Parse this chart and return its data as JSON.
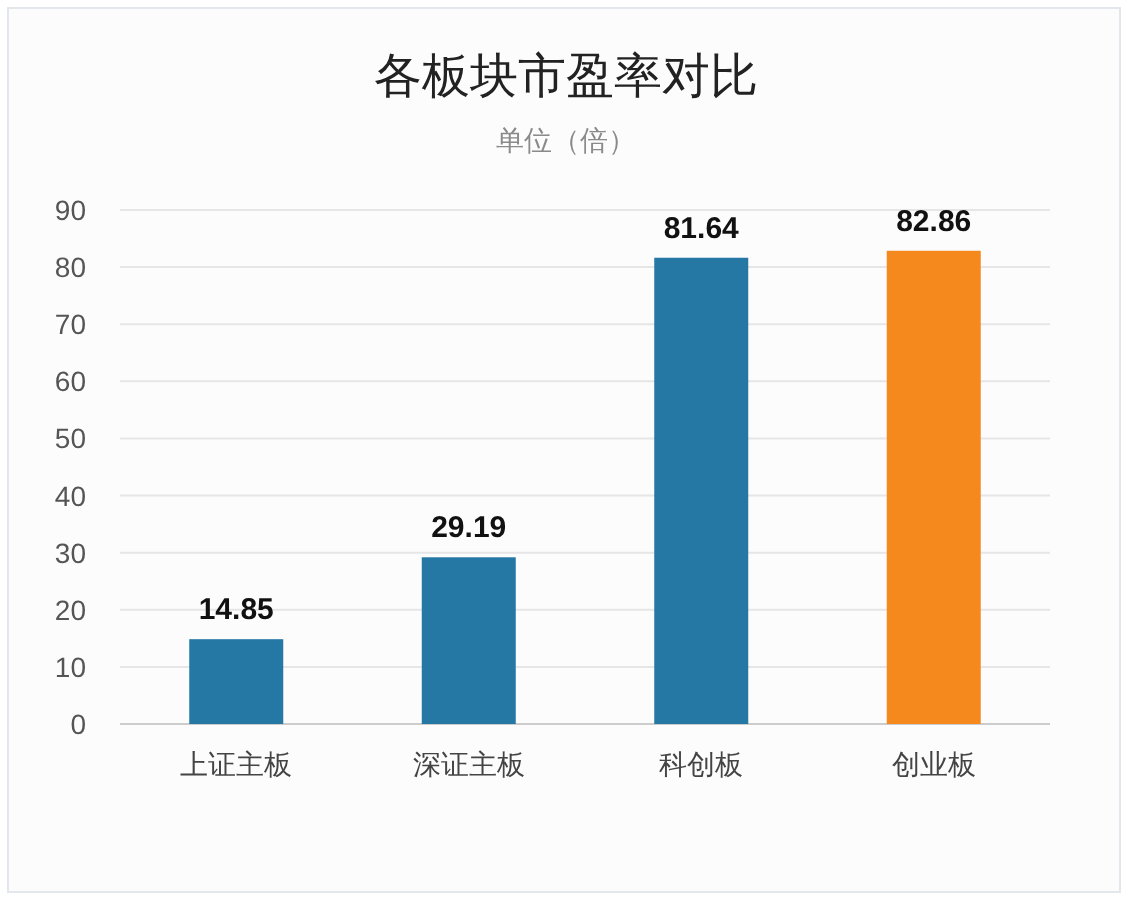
{
  "chart_data": {
    "type": "bar",
    "title": "各板块市盈率对比",
    "subtitle": "单位（倍）",
    "categories": [
      "上证主板",
      "深证主板",
      "科创板",
      "创业板"
    ],
    "values": [
      14.85,
      29.19,
      81.64,
      82.86
    ],
    "colors": [
      "#2577a4",
      "#2577a4",
      "#2577a4",
      "#f5891e"
    ],
    "ylim": [
      0,
      90
    ],
    "yticks": [
      0,
      10,
      20,
      30,
      40,
      50,
      60,
      70,
      80,
      90
    ],
    "grid": "y",
    "data_labels": true
  }
}
